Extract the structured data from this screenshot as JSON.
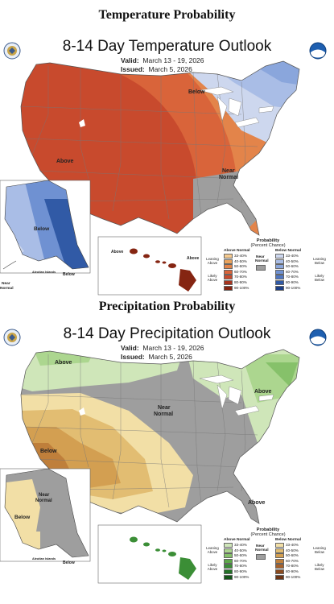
{
  "temperature": {
    "heading": "Temperature Probability",
    "title": "8-14 Day Temperature Outlook",
    "valid_label": "Valid:",
    "valid": "March 13 - 19, 2026",
    "issued_label": "Issued:",
    "issued": "March 5, 2026",
    "regions": {
      "above": "Above",
      "below": "Below",
      "near_normal_1": "Near",
      "near_normal_2": "Normal",
      "ak_below": "Below",
      "hi_above_1": "Above",
      "hi_above_2": "Above",
      "aleutian": "Aleutian Islands",
      "aleutian_below": "Below",
      "near_normal_ak_1": "Near",
      "near_normal_ak_2": "Normal"
    },
    "legend": {
      "title": "Probability",
      "subtitle": "(Percent Chance)",
      "above_head": "Above Normal",
      "below_head": "Below Normal",
      "near_head_1": "Near",
      "near_head_2": "Normal",
      "leaning_above": "Leaning Above",
      "likely_above": "Likely Above",
      "leaning_below": "Leaning Below",
      "likely_below": "Likely Below",
      "above_colors": [
        "#f4c98f",
        "#eaa35d",
        "#e3844a",
        "#d9643a",
        "#c84a2d",
        "#a8351f",
        "#852512",
        "#5a1507"
      ],
      "below_colors": [
        "#cdd7ee",
        "#a9bde6",
        "#8aa6dc",
        "#6f91d2",
        "#4f76c2",
        "#315aa6",
        "#1d3f86",
        "#0d2360"
      ],
      "ranges": [
        "33-40%",
        "40-50%",
        "50-60%",
        "60-70%",
        "70-80%",
        "80-90%",
        "90-100%"
      ]
    }
  },
  "precipitation": {
    "heading": "Precipitation Probability",
    "title": "8-14 Day Precipitation Outlook",
    "valid_label": "Valid:",
    "valid": "March 13 - 19, 2026",
    "issued_label": "Issued:",
    "issued": "March 5, 2026",
    "regions": {
      "above_nw": "Above",
      "above_ne": "Above",
      "above_se": "Above",
      "below": "Below",
      "near_normal_1": "Near",
      "near_normal_2": "Normal",
      "ak_near_1": "Near",
      "ak_near_2": "Normal",
      "ak_below": "Below",
      "aleutian": "Aleutian Islands",
      "aleutian_below": "Below"
    },
    "legend": {
      "title": "Probability",
      "subtitle": "(Percent Chance)",
      "above_head": "Above Normal",
      "below_head": "Below Normal",
      "near_head_1": "Near",
      "near_head_2": "Normal",
      "leaning_above": "Leaning Above",
      "likely_above": "Likely Above",
      "leaning_below": "Leaning Below",
      "likely_below": "Likely Below",
      "above_colors": [
        "#cfe6b9",
        "#acd68f",
        "#86c16a",
        "#5ea84a",
        "#3b8e36",
        "#237127",
        "#135518",
        "#073c0c"
      ],
      "below_colors": [
        "#f2dfa6",
        "#e2bd72",
        "#d39f51",
        "#bf7f3b",
        "#a6612a",
        "#8a4a1f",
        "#6c3415",
        "#4c220c"
      ],
      "ranges": [
        "33-40%",
        "40-50%",
        "50-60%",
        "60-70%",
        "70-80%",
        "80-90%",
        "90-100%"
      ]
    }
  },
  "colors": {
    "near_normal": "#9e9e9e",
    "ocean": "#ffffff",
    "state_border": "#777777"
  }
}
